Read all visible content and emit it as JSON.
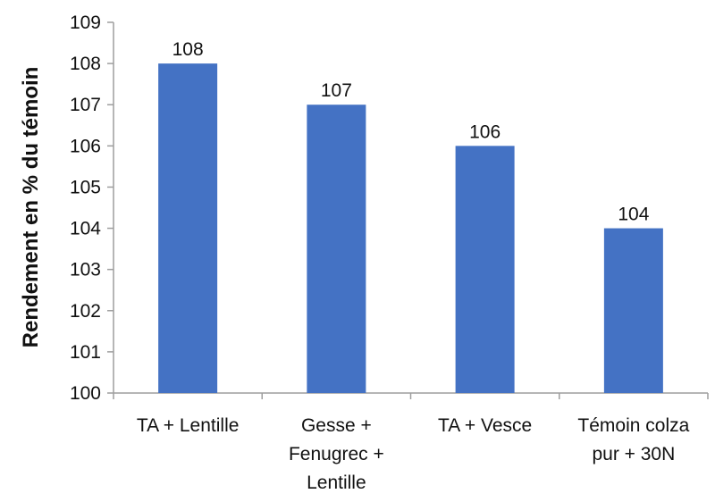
{
  "chart_data": {
    "type": "bar",
    "title": "",
    "xlabel": "",
    "ylabel": "Rendement en % du témoin",
    "ylim": [
      100,
      109
    ],
    "ytick_step": 1,
    "grid": false,
    "legend": "none",
    "categories": [
      [
        "TA + Lentille"
      ],
      [
        "Gesse +",
        "Fenugrec +",
        "Lentille"
      ],
      [
        "TA + Vesce"
      ],
      [
        "Témoin colza",
        "pur + 30N"
      ]
    ],
    "values": [
      108,
      107,
      106,
      104
    ],
    "data_labels": [
      "108",
      "107",
      "106",
      "104"
    ],
    "bar_color": "#4472c4",
    "axis_color": "#9e9e9e"
  }
}
